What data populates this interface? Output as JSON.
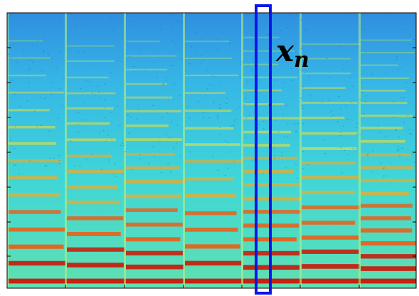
{
  "annotation": {
    "symbol": "x",
    "subscript": "n"
  }
}
